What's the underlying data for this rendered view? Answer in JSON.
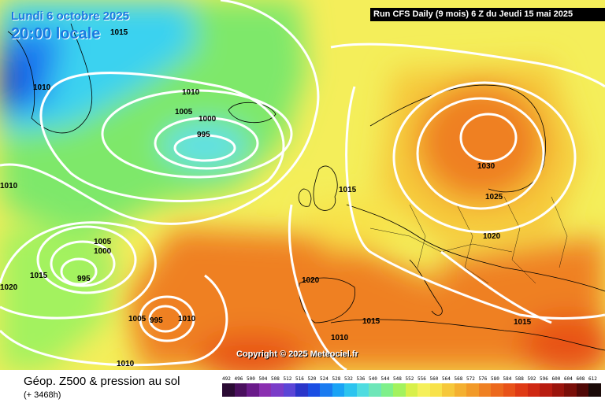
{
  "header": {
    "date": "Lundi 6 octobre 2025",
    "time": "20:00 locale",
    "run": "Run CFS Daily (9 mois) 6 Z du Jeudi 15 mai 2025"
  },
  "copyright": "Copyright © 2025 Meteociel.fr",
  "legend": {
    "title": "Géop. Z500 & pression au sol",
    "subtitle": "(+ 3468h)",
    "scale_labels": [
      "492",
      "496",
      "500",
      "504",
      "508",
      "512",
      "516",
      "520",
      "524",
      "528",
      "532",
      "536",
      "540",
      "544",
      "548",
      "552",
      "556",
      "560",
      "564",
      "568",
      "572",
      "576",
      "580",
      "584",
      "588",
      "592",
      "596",
      "600",
      "604",
      "608",
      "612"
    ],
    "scale_colors": [
      "#2a0a33",
      "#4a0f5e",
      "#6a1a8a",
      "#8a2fb0",
      "#7a3cc8",
      "#5b45d6",
      "#2a35c9",
      "#1a4ee3",
      "#1a7bf0",
      "#1aa3f5",
      "#2cc4ef",
      "#4fdce0",
      "#6ee6b8",
      "#7ff08a",
      "#a3f25e",
      "#d8f04a",
      "#f5f05a",
      "#f8e24a",
      "#f6c83a",
      "#f4b030",
      "#f29a28",
      "#ef8022",
      "#ec681c",
      "#e85218",
      "#df3a14",
      "#cf2812",
      "#b81c10",
      "#9a140c",
      "#7a0e08",
      "#500806",
      "#1a0a08"
    ]
  },
  "isobars": {
    "labels": [
      "1015",
      "1010",
      "1010",
      "1005",
      "1000",
      "995",
      "1015",
      "1030",
      "1025",
      "1020",
      "1010",
      "1005",
      "1000",
      "1015",
      "995",
      "1020",
      "1020",
      "1005",
      "995",
      "1010",
      "1015",
      "1010",
      "1015",
      "1010"
    ]
  },
  "colors": {
    "ocean_deep": "#0a2fd8",
    "ocean_cyan": "#3ad2f0",
    "green": "#7ee86a",
    "yellow": "#f4ee5a",
    "orange": "#f29a28",
    "red": "#e85218",
    "isobar": "#ffffff"
  }
}
